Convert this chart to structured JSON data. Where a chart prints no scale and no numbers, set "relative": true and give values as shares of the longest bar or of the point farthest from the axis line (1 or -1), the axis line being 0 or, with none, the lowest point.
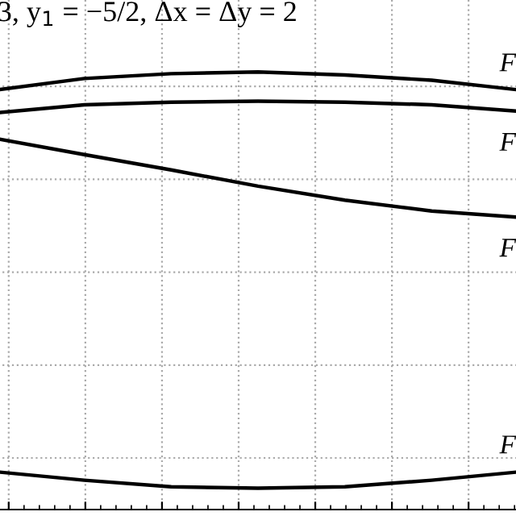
{
  "chart_data": {
    "type": "line",
    "relative": true,
    "categories": [
      null,
      null,
      null,
      null,
      null,
      null,
      null
    ],
    "series": [
      {
        "name": "F",
        "color": "#000000",
        "values": [
          0.959,
          0.985,
          0.996,
          1.0,
          0.993,
          0.981,
          0.959
        ]
      },
      {
        "name": "F",
        "color": "#000000",
        "values": [
          0.907,
          0.925,
          0.931,
          0.933,
          0.931,
          0.925,
          0.91
        ]
      },
      {
        "name": "F",
        "color": "#000000",
        "values": [
          0.847,
          0.811,
          0.776,
          0.739,
          0.707,
          0.682,
          0.668
        ]
      },
      {
        "name": "F",
        "color": "#000000",
        "values": [
          0.086,
          0.067,
          0.052,
          0.049,
          0.052,
          0.067,
          0.086
        ]
      }
    ],
    "annotations": [
      "3, y$_{1}$ = −5/2, Δx = Δy = 2"
    ],
    "grid": true,
    "tick_labels": false,
    "line_style": "solid",
    "marker": "none"
  }
}
